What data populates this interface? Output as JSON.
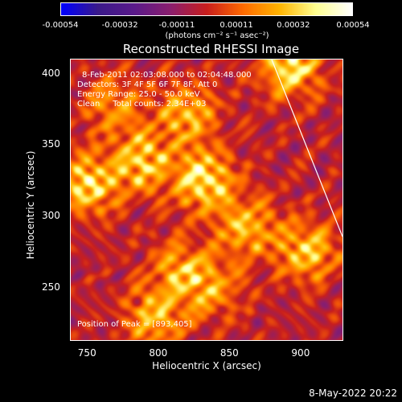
{
  "chart_data": {
    "type": "heatmap",
    "title": "Reconstructed RHESSI Image",
    "xlabel": "Heliocentric X (arcsec)",
    "ylabel": "Heliocentric Y (arcsec)",
    "xlim": [
      738,
      930
    ],
    "ylim": [
      212,
      410
    ],
    "x_ticks": [
      "750",
      "800",
      "850",
      "900"
    ],
    "x_tick_values": [
      750,
      800,
      850,
      900
    ],
    "y_ticks": [
      "250",
      "300",
      "350",
      "400"
    ],
    "y_tick_values": [
      250,
      300,
      350,
      400
    ],
    "colorbar": {
      "ticks": [
        "-0.00054",
        "-0.00032",
        "-0.00011",
        "0.00011",
        "0.00032",
        "0.00054"
      ],
      "tick_values": [
        -0.00054,
        -0.00032,
        -0.00011,
        0.00011,
        0.00032,
        0.00054
      ],
      "range": [
        -0.00054,
        0.00054
      ],
      "units": "(photons cm⁻² s⁻¹ asec⁻²)",
      "colors": [
        "#0000ff",
        "#3a1a8a",
        "#5a1a8a",
        "#8a1e6e",
        "#c81e1e",
        "#ff6a00",
        "#ffb400",
        "#ffff90",
        "#ffffff"
      ]
    },
    "annotations": {
      "time": "8-Feb-2011 02:03:08.000 to 02:04:48.000",
      "detectors": "Detectors: 3F 4F 5F 6F 7F 8F, Att 0",
      "energy": "Energy Range: 25.0 - 50.0 keV",
      "clean": "Clean     Total counts: 2.34E+03",
      "peak": "Position of Peak = [893,405]"
    },
    "limb_line": {
      "x": [
        880,
        930
      ],
      "y": [
        410,
        285
      ]
    },
    "bright_regions": [
      {
        "x": 750,
        "y": 322,
        "value": 0.0005
      },
      {
        "x": 788,
        "y": 338,
        "value": 0.00045
      },
      {
        "x": 832,
        "y": 325,
        "value": 0.00054
      },
      {
        "x": 820,
        "y": 372,
        "value": 0.0004
      },
      {
        "x": 893,
        "y": 405,
        "value": 0.00054
      },
      {
        "x": 862,
        "y": 292,
        "value": 0.0004
      },
      {
        "x": 905,
        "y": 275,
        "value": 0.00045
      },
      {
        "x": 815,
        "y": 262,
        "value": 0.00035
      },
      {
        "x": 797,
        "y": 228,
        "value": 0.0004
      },
      {
        "x": 768,
        "y": 378,
        "value": 0.0003
      },
      {
        "x": 838,
        "y": 248,
        "value": 0.0003
      }
    ]
  },
  "footer": {
    "date": "8-May-2022 20:22"
  }
}
